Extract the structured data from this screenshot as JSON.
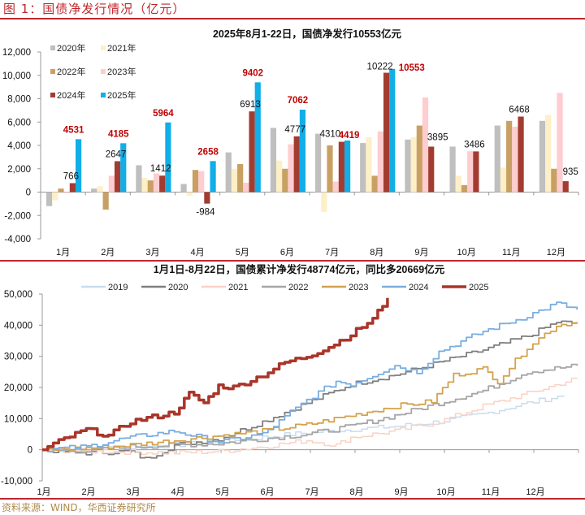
{
  "figure": {
    "title": "图 1：国债净发行情况（亿元）",
    "source": "资料来源：WIND，华西证券研究所"
  },
  "colors": {
    "accent_red": "#c0272d",
    "label_red": "#c00000"
  },
  "chart_data": [
    {
      "type": "bar",
      "title": "2025年8月1-22日，国债净发行10553亿元",
      "categories": [
        "1月",
        "2月",
        "3月",
        "4月",
        "5月",
        "6月",
        "7月",
        "8月",
        "9月",
        "10月",
        "11月",
        "12月"
      ],
      "ylim": [
        -4000,
        12000
      ],
      "yticks": [
        -4000,
        -2000,
        0,
        2000,
        4000,
        6000,
        8000,
        10000,
        12000
      ],
      "ytick_labels": [
        "-4,000",
        "-2,000",
        "0",
        "2,000",
        "4,000",
        "6,000",
        "8,000",
        "10,000",
        "12,000"
      ],
      "legend_position": "top-left",
      "series": [
        {
          "name": "2020年",
          "color": "#bfbfbf",
          "values": [
            -1200,
            300,
            2300,
            700,
            3400,
            5500,
            5000,
            4200,
            4500,
            3900,
            5700,
            6100
          ]
        },
        {
          "name": "2021年",
          "color": "#fdefc6",
          "values": [
            -700,
            500,
            1200,
            -300,
            2000,
            2700,
            -1700,
            4700,
            4700,
            1400,
            2100,
            6600
          ]
        },
        {
          "name": "2022年",
          "color": "#c9a063",
          "values": [
            300,
            -1500,
            1000,
            1900,
            2400,
            2000,
            4000,
            1400,
            5700,
            600,
            6100,
            2000
          ]
        },
        {
          "name": "2023年",
          "color": "#fdcdd0",
          "values": [
            0,
            1400,
            1600,
            1800,
            800,
            4100,
            900,
            5200,
            8100,
            3500,
            5600,
            8500
          ]
        },
        {
          "name": "2024年",
          "color": "#a23c31",
          "values": [
            766,
            2647,
            1412,
            -984,
            6913,
            4777,
            4310,
            10222,
            3895,
            3486,
            6468,
            935
          ]
        },
        {
          "name": "2025年",
          "color": "#12aee8",
          "values": [
            4531,
            4185,
            5964,
            2658,
            9402,
            7062,
            4419,
            10553,
            null,
            null,
            null,
            null
          ]
        }
      ],
      "data_labels": {
        "2024年": [
          "766",
          "2647",
          "1412",
          "-984",
          "6913",
          "4777",
          "4310",
          "10222",
          "3895",
          "3486",
          "6468",
          "935"
        ],
        "2025年": [
          "4531",
          "4185",
          "5964",
          "2658",
          "9402",
          "7062",
          "4419",
          "10553"
        ]
      }
    },
    {
      "type": "line",
      "title": "1月1日-8月22日，国债累计净发行48774亿元，同比多20669亿元",
      "x_tick_labels": [
        "1月",
        "2月",
        "3月",
        "4月",
        "5月",
        "6月",
        "7月",
        "8月",
        "9月",
        "10月",
        "11月",
        "12月"
      ],
      "xlim": [
        0,
        365
      ],
      "ylim": [
        -10000,
        50000
      ],
      "yticks": [
        -10000,
        0,
        10000,
        20000,
        30000,
        40000,
        50000
      ],
      "ytick_labels": [
        "-10,000",
        "0",
        "10,000",
        "20,000",
        "30,000",
        "40,000",
        "50,000"
      ],
      "legend_position": "top",
      "series": [
        {
          "name": "2019",
          "color": "#c9dcef",
          "width": 1.5,
          "x": [
            0,
            30,
            60,
            90,
            120,
            150,
            180,
            210,
            240,
            270,
            300,
            330,
            355
          ],
          "y": [
            0,
            300,
            700,
            1500,
            2500,
            4000,
            5500,
            6500,
            7500,
            9000,
            11500,
            15000,
            17500
          ]
        },
        {
          "name": "2020",
          "color": "#7f7f7f",
          "width": 1.8,
          "x": [
            0,
            30,
            60,
            70,
            90,
            120,
            150,
            180,
            210,
            240,
            270,
            300,
            330,
            350,
            364
          ],
          "y": [
            0,
            -1000,
            -500,
            -3000,
            1500,
            3500,
            9000,
            15000,
            21000,
            24000,
            28000,
            32000,
            36500,
            41000,
            40500
          ]
        },
        {
          "name": "2021",
          "color": "#f8d2c4",
          "width": 1.5,
          "x": [
            0,
            30,
            60,
            90,
            120,
            150,
            180,
            200,
            210,
            240,
            270,
            300,
            330,
            364
          ],
          "y": [
            0,
            -500,
            -700,
            -1000,
            -500,
            1000,
            3000,
            1500,
            4000,
            6000,
            9000,
            14000,
            18000,
            23000
          ]
        },
        {
          "name": "2022",
          "color": "#a6a6a6",
          "width": 1.8,
          "x": [
            0,
            30,
            60,
            90,
            120,
            150,
            180,
            210,
            240,
            270,
            300,
            330,
            364
          ],
          "y": [
            0,
            -500,
            1000,
            1500,
            2000,
            3500,
            5000,
            7500,
            11000,
            15000,
            19000,
            25000,
            27000
          ]
        },
        {
          "name": "2023",
          "color": "#d4a24c",
          "width": 1.8,
          "x": [
            0,
            30,
            60,
            90,
            120,
            150,
            180,
            210,
            240,
            265,
            280,
            300,
            310,
            330,
            350,
            364
          ],
          "y": [
            0,
            500,
            1500,
            3000,
            4500,
            6000,
            8000,
            11000,
            14000,
            15500,
            24000,
            26000,
            22000,
            33000,
            40000,
            41000
          ]
        },
        {
          "name": "2024",
          "color": "#7aaee0",
          "width": 1.8,
          "x": [
            0,
            30,
            60,
            90,
            120,
            150,
            180,
            200,
            210,
            240,
            255,
            270,
            300,
            330,
            350,
            364
          ],
          "y": [
            0,
            1000,
            4000,
            6000,
            2500,
            5000,
            16000,
            22000,
            21000,
            27000,
            25000,
            31500,
            38000,
            43000,
            47000,
            45000
          ]
        },
        {
          "name": "2025",
          "color": "#a9352a",
          "width": 3.5,
          "x": [
            0,
            15,
            30,
            45,
            60,
            75,
            90,
            100,
            110,
            120,
            130,
            150,
            165,
            180,
            195,
            210,
            225,
            235
          ],
          "y": [
            0,
            3500,
            6500,
            4500,
            9000,
            10500,
            12000,
            18000,
            15000,
            20500,
            20000,
            24000,
            28000,
            30000,
            33000,
            37000,
            42000,
            48774
          ]
        }
      ]
    }
  ]
}
